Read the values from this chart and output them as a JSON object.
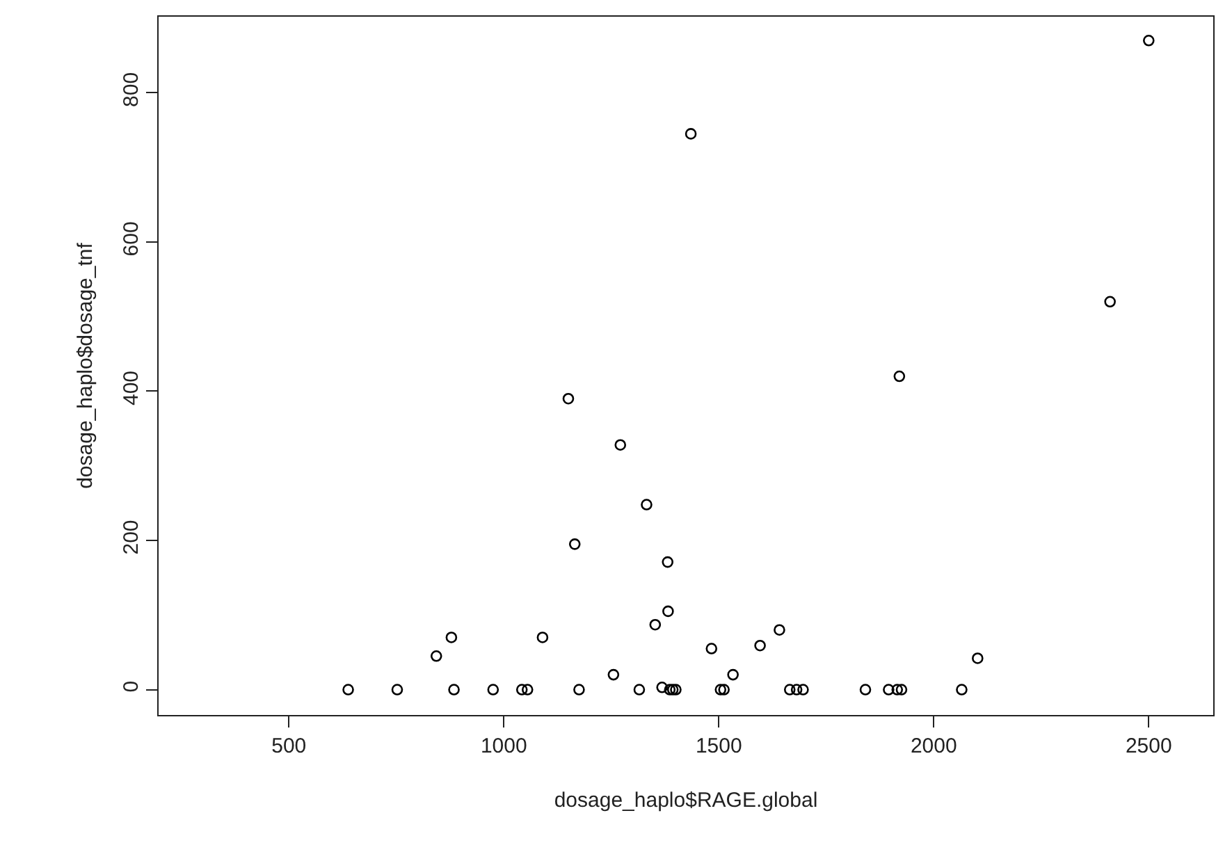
{
  "chart_data": {
    "type": "scatter",
    "xlabel": "dosage_haplo$RAGE.global",
    "ylabel": "dosage_haplo$dosage_tnf",
    "x": [
      638,
      752,
      843,
      878,
      884,
      975,
      1042,
      1055,
      1090,
      1150,
      1165,
      1175,
      1255,
      1271,
      1315,
      1332,
      1352,
      1368,
      1381,
      1382,
      1386,
      1393,
      1400,
      1435,
      1483,
      1504,
      1512,
      1533,
      1596,
      1641,
      1665,
      1681,
      1696,
      1841,
      1895,
      1915,
      1925,
      1920,
      2065,
      2102,
      2410,
      2500
    ],
    "series": [
      {
        "color": "#000000",
        "values": [
          0,
          0,
          45,
          70,
          0,
          0,
          0,
          0,
          70,
          390,
          195,
          0,
          20,
          328,
          0,
          248,
          87,
          3,
          171,
          105,
          0,
          0,
          0,
          745,
          55,
          0,
          0,
          20,
          59,
          80,
          0,
          0,
          0,
          0,
          0,
          0,
          0,
          420,
          0,
          42,
          520,
          870
        ]
      }
    ],
    "xlim": [
      197,
      2650
    ],
    "ylim": [
      -34,
      902
    ],
    "xticks": [
      500,
      1000,
      1500,
      2000,
      2500
    ],
    "yticks": [
      0,
      200,
      400,
      600,
      800
    ],
    "marker": "circle",
    "legend": false
  }
}
